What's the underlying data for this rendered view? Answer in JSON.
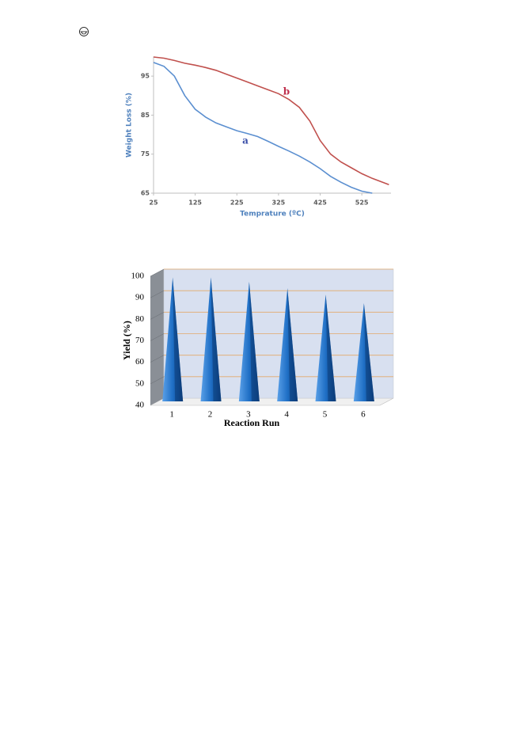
{
  "chart_data": [
    {
      "type": "line",
      "x_label": "Temprature (ºC)",
      "y_label": "Weight Loss (%)",
      "x": [
        25,
        50,
        75,
        100,
        125,
        150,
        175,
        200,
        225,
        250,
        275,
        300,
        325,
        350,
        375,
        400,
        425,
        450,
        475,
        500,
        525,
        550,
        575,
        590
      ],
      "series": [
        {
          "name": "a",
          "color": "#5b8fd0",
          "values": [
            98.5,
            97.5,
            95,
            90,
            86.5,
            84.5,
            83,
            82,
            81,
            80.3,
            79.5,
            78.3,
            77,
            75.8,
            74.5,
            73,
            71.3,
            69.3,
            67.8,
            66.5,
            65.5,
            65,
            null,
            null
          ]
        },
        {
          "name": "b",
          "color": "#c0504d",
          "values": [
            99.9,
            99.6,
            99,
            98.3,
            97.8,
            97.2,
            96.5,
            95.5,
            94.5,
            93.5,
            92.5,
            91.5,
            90.5,
            89,
            87,
            83.5,
            78.5,
            75,
            73,
            71.5,
            70,
            68.8,
            67.8,
            67.2
          ]
        }
      ],
      "xlim": [
        25,
        595
      ],
      "xticks": [
        25,
        125,
        225,
        325,
        425,
        525
      ],
      "ylim": [
        65,
        100
      ],
      "yticks": [
        65,
        75,
        85,
        95
      ]
    },
    {
      "type": "cone",
      "x_label": "Reaction Run",
      "y_label": "Yield (%)",
      "categories": [
        "1",
        "2",
        "3",
        "4",
        "5",
        "6"
      ],
      "values": [
        98,
        98,
        96,
        93,
        90,
        86
      ],
      "color": "#1f6fc5",
      "ylim": [
        40,
        100
      ],
      "yticks": [
        40,
        50,
        60,
        70,
        80,
        90,
        100
      ],
      "grid": true
    }
  ]
}
